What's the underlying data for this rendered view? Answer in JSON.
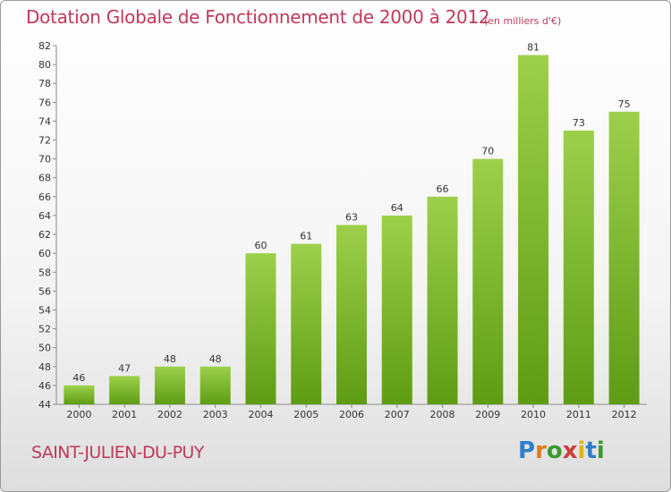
{
  "header": {
    "title": "Dotation Globale de Fonctionnement de 2000 à 2012",
    "subtitle": "(en milliers d'€)"
  },
  "footer": {
    "commune": "SAINT-JULIEN-DU-PUY",
    "logo_text": "Proxiti"
  },
  "colors": {
    "title": "#c0395a",
    "bar_top": "#9dd04a",
    "bar_bottom": "#5e9c14"
  },
  "chart_data": {
    "type": "bar",
    "title": "Dotation Globale de Fonctionnement de 2000 à 2012",
    "subtitle": "(en milliers d'€)",
    "categories": [
      "2000",
      "2001",
      "2002",
      "2003",
      "2004",
      "2005",
      "2006",
      "2007",
      "2008",
      "2009",
      "2010",
      "2011",
      "2012"
    ],
    "values": [
      46,
      47,
      48,
      48,
      60,
      61,
      63,
      64,
      66,
      70,
      81,
      73,
      75
    ],
    "ylim": [
      44,
      82
    ],
    "yticks": [
      44,
      46,
      48,
      50,
      52,
      54,
      56,
      58,
      60,
      62,
      64,
      66,
      68,
      70,
      72,
      74,
      76,
      78,
      80,
      82
    ],
    "grid": false,
    "legend": "none"
  }
}
